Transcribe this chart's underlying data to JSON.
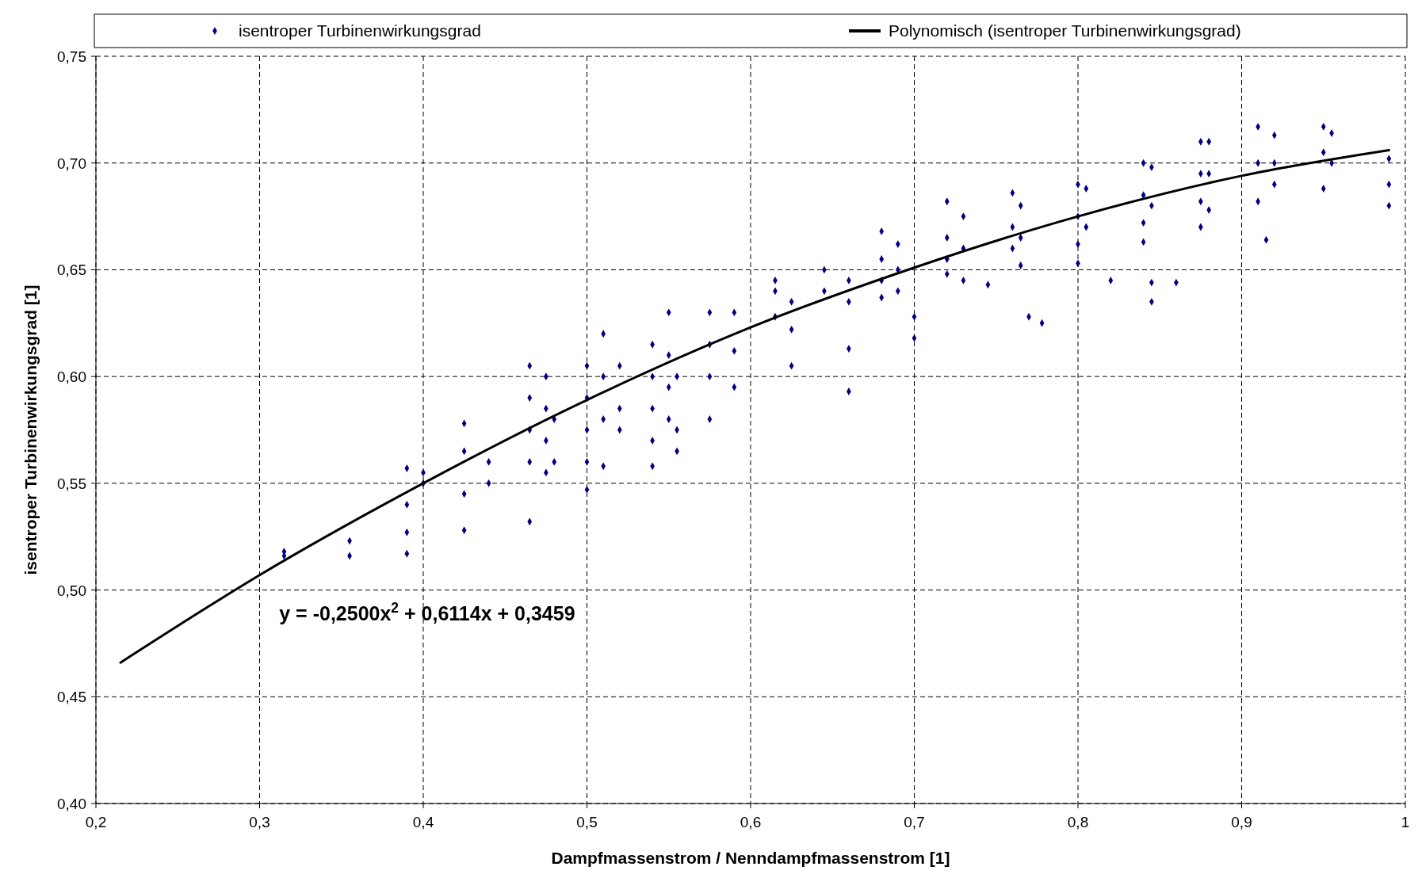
{
  "chart_data": {
    "type": "scatter",
    "xlabel": "Dampfmassenstrom / Nenndampfmassenstrom [1]",
    "ylabel": "isentroper Turbinenwirkungsgrad [1]",
    "xlim": [
      0.2,
      1
    ],
    "ylim": [
      0.4,
      0.75
    ],
    "xticks": [
      {
        "value": 0.2,
        "label": "0,2"
      },
      {
        "value": 0.3,
        "label": "0,3"
      },
      {
        "value": 0.4,
        "label": "0,4"
      },
      {
        "value": 0.5,
        "label": "0,5"
      },
      {
        "value": 0.6,
        "label": "0,6"
      },
      {
        "value": 0.7,
        "label": "0,7"
      },
      {
        "value": 0.8,
        "label": "0,8"
      },
      {
        "value": 0.9,
        "label": "0,9"
      },
      1
    ],
    "yticks": [
      {
        "value": 0.4,
        "label": "0,40"
      },
      {
        "value": 0.45,
        "label": "0,45"
      },
      {
        "value": 0.5,
        "label": "0,50"
      },
      {
        "value": 0.55,
        "label": "0,55"
      },
      {
        "value": 0.6,
        "label": "0,60"
      },
      {
        "value": 0.65,
        "label": "0,65"
      },
      {
        "value": 0.7,
        "label": "0,70"
      },
      {
        "value": 0.75,
        "label": "0,75"
      }
    ],
    "grid": true,
    "legend": "top",
    "annotations": [
      "y = -0,2500x$^{2}$ + 0,6114x + 0,3459"
    ],
    "series": [
      {
        "name": "isentroper Turbinenwirkungsgrad",
        "marker": "diamond",
        "color": "#000080",
        "x": [
          0.315,
          0.315,
          0.355,
          0.355,
          0.39,
          0.39,
          0.39,
          0.39,
          0.4,
          0.4,
          0.425,
          0.425,
          0.425,
          0.425,
          0.44,
          0.44,
          0.465,
          0.465,
          0.465,
          0.465,
          0.465,
          0.475,
          0.475,
          0.475,
          0.475,
          0.48,
          0.48,
          0.5,
          0.5,
          0.5,
          0.5,
          0.5,
          0.51,
          0.51,
          0.51,
          0.51,
          0.52,
          0.52,
          0.52,
          0.54,
          0.54,
          0.54,
          0.54,
          0.54,
          0.55,
          0.55,
          0.55,
          0.55,
          0.555,
          0.555,
          0.555,
          0.575,
          0.575,
          0.575,
          0.575,
          0.59,
          0.59,
          0.59,
          0.615,
          0.615,
          0.615,
          0.625,
          0.625,
          0.625,
          0.645,
          0.645,
          0.66,
          0.66,
          0.66,
          0.66,
          0.68,
          0.68,
          0.68,
          0.68,
          0.69,
          0.69,
          0.69,
          0.7,
          0.7,
          0.72,
          0.72,
          0.72,
          0.72,
          0.73,
          0.73,
          0.73,
          0.745,
          0.76,
          0.76,
          0.76,
          0.765,
          0.765,
          0.765,
          0.77,
          0.778,
          0.8,
          0.8,
          0.8,
          0.8,
          0.805,
          0.805,
          0.82,
          0.84,
          0.84,
          0.84,
          0.84,
          0.845,
          0.845,
          0.845,
          0.845,
          0.86,
          0.875,
          0.875,
          0.875,
          0.875,
          0.88,
          0.88,
          0.88,
          0.91,
          0.91,
          0.91,
          0.915,
          0.92,
          0.92,
          0.92,
          0.95,
          0.95,
          0.95,
          0.955,
          0.955,
          0.99,
          0.99,
          0.99
        ],
        "values": [
          0.518,
          0.516,
          0.523,
          0.516,
          0.557,
          0.54,
          0.527,
          0.517,
          0.555,
          0.55,
          0.578,
          0.565,
          0.545,
          0.528,
          0.56,
          0.55,
          0.605,
          0.59,
          0.575,
          0.56,
          0.532,
          0.6,
          0.585,
          0.57,
          0.555,
          0.58,
          0.56,
          0.605,
          0.59,
          0.575,
          0.56,
          0.547,
          0.62,
          0.6,
          0.58,
          0.558,
          0.605,
          0.585,
          0.575,
          0.615,
          0.6,
          0.585,
          0.57,
          0.558,
          0.63,
          0.61,
          0.595,
          0.58,
          0.6,
          0.575,
          0.565,
          0.63,
          0.615,
          0.6,
          0.58,
          0.63,
          0.612,
          0.595,
          0.645,
          0.64,
          0.628,
          0.635,
          0.622,
          0.605,
          0.65,
          0.64,
          0.645,
          0.635,
          0.613,
          0.593,
          0.668,
          0.655,
          0.645,
          0.637,
          0.662,
          0.65,
          0.64,
          0.628,
          0.618,
          0.682,
          0.665,
          0.655,
          0.648,
          0.675,
          0.66,
          0.645,
          0.643,
          0.686,
          0.67,
          0.66,
          0.68,
          0.665,
          0.652,
          0.628,
          0.625,
          0.69,
          0.675,
          0.662,
          0.653,
          0.688,
          0.67,
          0.645,
          0.7,
          0.685,
          0.672,
          0.663,
          0.698,
          0.68,
          0.644,
          0.635,
          0.644,
          0.71,
          0.695,
          0.682,
          0.67,
          0.71,
          0.695,
          0.678,
          0.717,
          0.7,
          0.682,
          0.664,
          0.713,
          0.7,
          0.69,
          0.717,
          0.705,
          0.688,
          0.714,
          0.7,
          0.702,
          0.69,
          0.68
        ]
      },
      {
        "name": "Polynomisch (isentroper Turbinenwirkungsgrad)",
        "type": "line",
        "marker": "none",
        "color": "#000000",
        "line_style": "solid",
        "x": [
          0.215,
          0.3,
          0.4,
          0.5,
          0.6,
          0.7,
          0.8,
          0.9,
          0.99
        ],
        "values": [
          0.466,
          0.507,
          0.55,
          0.589,
          0.623,
          0.651,
          0.675,
          0.694,
          0.706
        ]
      }
    ]
  }
}
